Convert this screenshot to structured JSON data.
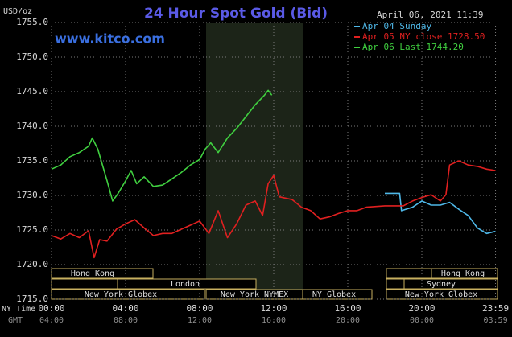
{
  "chart_data": {
    "type": "line",
    "title": "24 Hour Spot Gold (Bid)",
    "source": "www.kitco.com",
    "y_label": "USD/oz",
    "timestamp": "April 06, 2021 11:39",
    "x_row_label": "NY Time",
    "x2_row_label": "GMT",
    "xlim": [
      0,
      24
    ],
    "xticks": [
      {
        "value": 0,
        "label": "00:00"
      },
      {
        "value": 4,
        "label": "04:00"
      },
      {
        "value": 8,
        "label": "08:00"
      },
      {
        "value": 12,
        "label": "12:00"
      },
      {
        "value": 16,
        "label": "16:00"
      },
      {
        "value": 20,
        "label": "20:00"
      },
      {
        "value": 23.98,
        "label": "23:59"
      }
    ],
    "x2_labels": [
      "04:00",
      "08:00",
      "12:00",
      "16:00",
      "20:00",
      "00:00",
      "03:59"
    ],
    "ylim": [
      1715,
      1755
    ],
    "yticks": [
      {
        "value": 1715,
        "label": "1715.0"
      },
      {
        "value": 1720,
        "label": "1720.0"
      },
      {
        "value": 1725,
        "label": "1725.0"
      },
      {
        "value": 1730,
        "label": "1730.0"
      },
      {
        "value": 1735,
        "label": "1735.0"
      },
      {
        "value": 1740,
        "label": "1740.0"
      },
      {
        "value": 1745,
        "label": "1745.0"
      },
      {
        "value": 1750,
        "label": "1750.0"
      },
      {
        "value": 1755,
        "label": "1755.0"
      }
    ],
    "grid": true,
    "sessions": [
      "Hong Kong",
      "London",
      "New York Globex",
      "New York NYMEX",
      "NY Globex",
      "Hong Kong",
      "Sydney",
      "New York Globex"
    ],
    "series": [
      {
        "name": "Apr 04 Sunday",
        "color": "#4fb8e8",
        "x": [
          18,
          18.8,
          18.9,
          19.5,
          20,
          20.5,
          21,
          21.5,
          22,
          22.5,
          23,
          23.5,
          23.98
        ],
        "values": [
          1730.3,
          1730.3,
          1727.8,
          1728.3,
          1729.2,
          1728.6,
          1728.6,
          1729.0,
          1728.0,
          1727.1,
          1725.3,
          1724.5,
          1724.8
        ]
      },
      {
        "name": "Apr 05 NY close 1728.50",
        "color": "#e02020",
        "x": [
          0,
          0.5,
          1,
          1.5,
          2,
          2.3,
          2.6,
          3,
          3.5,
          4,
          4.5,
          5,
          5.5,
          6,
          6.5,
          7,
          7.5,
          8,
          8.5,
          9,
          9.5,
          10,
          10.5,
          11,
          11.4,
          11.7,
          12,
          12.3,
          13,
          13.5,
          14,
          14.5,
          15,
          15.5,
          16,
          16.5,
          17,
          18,
          18.5,
          19,
          19.5,
          20,
          20.5,
          21,
          21.3,
          21.5,
          22,
          22.5,
          23,
          23.5,
          23.98
        ],
        "values": [
          1724.2,
          1723.7,
          1724.5,
          1723.9,
          1724.9,
          1721.0,
          1723.6,
          1723.4,
          1725.1,
          1725.9,
          1726.5,
          1725.3,
          1724.2,
          1724.5,
          1724.5,
          1725.1,
          1725.7,
          1726.3,
          1724.5,
          1727.8,
          1723.9,
          1725.9,
          1728.6,
          1729.2,
          1727.1,
          1731.7,
          1732.9,
          1729.8,
          1729.4,
          1728.3,
          1727.8,
          1726.6,
          1726.9,
          1727.4,
          1727.8,
          1727.8,
          1728.3,
          1728.5,
          1728.5,
          1728.5,
          1729.2,
          1729.7,
          1730.1,
          1729.2,
          1730.1,
          1734.4,
          1735.0,
          1734.4,
          1734.2,
          1733.8,
          1733.6
        ]
      },
      {
        "name": "Apr 06 Last 1744.20",
        "color": "#40d040",
        "x": [
          0,
          0.5,
          1,
          1.5,
          2,
          2.2,
          2.5,
          3,
          3.3,
          3.6,
          4,
          4.3,
          4.6,
          5,
          5.5,
          6,
          6.5,
          7,
          7.5,
          8,
          8.3,
          8.6,
          9,
          9.5,
          10,
          10.5,
          11,
          11.5,
          11.7,
          11.9
        ],
        "values": [
          1733.8,
          1734.4,
          1735.6,
          1736.2,
          1737.1,
          1738.3,
          1736.7,
          1732.1,
          1729.2,
          1730.3,
          1732.1,
          1733.6,
          1731.7,
          1732.7,
          1731.3,
          1731.5,
          1732.4,
          1733.3,
          1734.4,
          1735.2,
          1736.7,
          1737.6,
          1736.2,
          1738.3,
          1739.7,
          1741.4,
          1743.1,
          1744.5,
          1745.2,
          1744.5
        ]
      }
    ]
  }
}
